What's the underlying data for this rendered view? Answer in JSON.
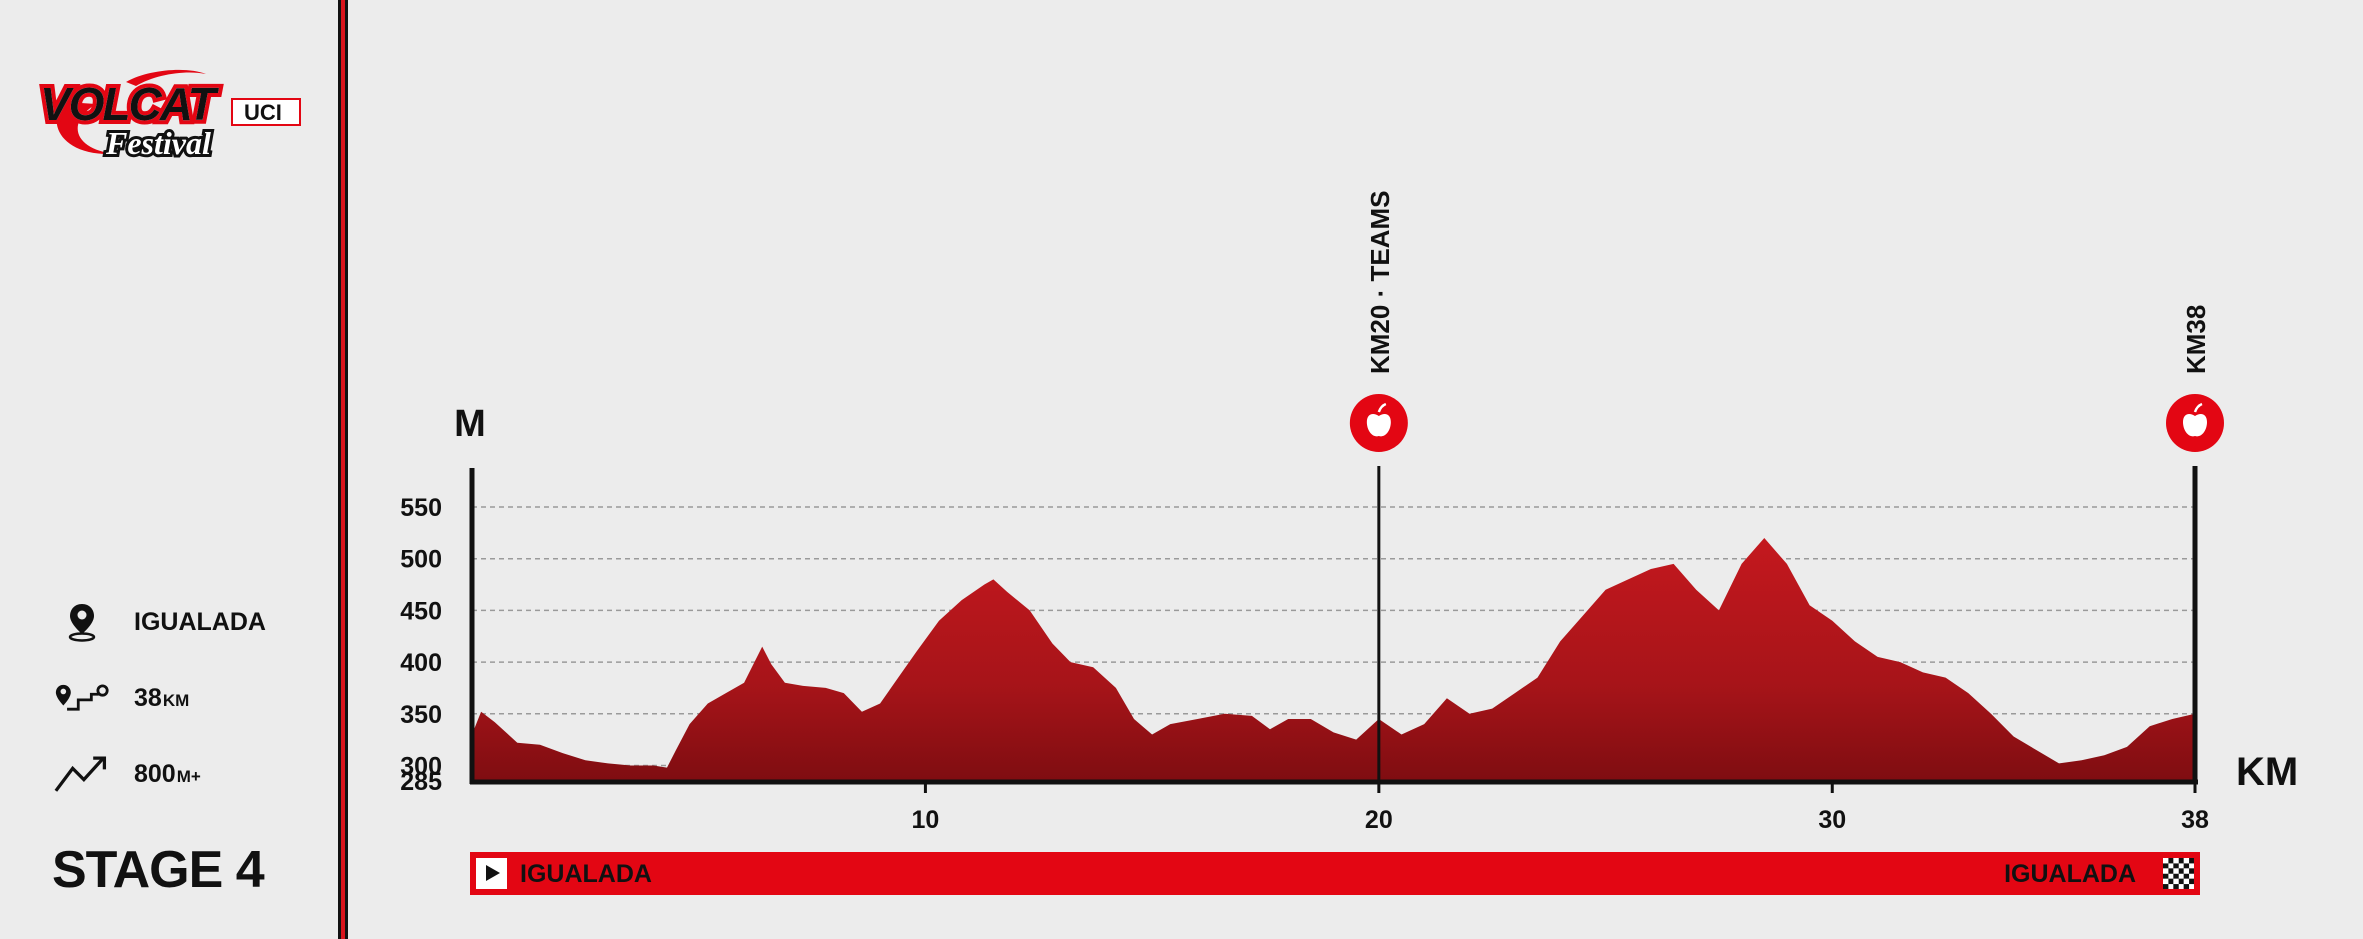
{
  "brand": {
    "logo_text": "VOLCAT",
    "logo_sub": "Festival",
    "logo_tag": "UCI",
    "primary_color": "#e30613"
  },
  "info": {
    "location": "IGUALADA",
    "distance_value": "38",
    "distance_unit": "KM",
    "elevation_value": "800",
    "elevation_unit": "M+",
    "stage": "STAGE 4"
  },
  "route": {
    "start": "IGUALADA",
    "finish": "IGUALADA"
  },
  "markers": [
    {
      "km": 20,
      "label": "KM20 · TEAMS",
      "icon": "apple-icon"
    },
    {
      "km": 38,
      "label": "KM38",
      "icon": "apple-icon"
    }
  ],
  "chart_data": {
    "type": "area",
    "title": "",
    "xlabel": "KM",
    "ylabel": "M",
    "xlim": [
      0,
      38
    ],
    "ylim": [
      285,
      580
    ],
    "x_ticks": [
      10,
      20,
      30,
      38
    ],
    "y_ticks": [
      285,
      300,
      350,
      400,
      450,
      500,
      550
    ],
    "grid": true,
    "series": [
      {
        "color": "#b5161b",
        "x": [
          0,
          0.2,
          0.5,
          1.0,
          1.5,
          2.0,
          2.5,
          3.0,
          3.5,
          4.0,
          4.3,
          4.5,
          4.8,
          5.2,
          5.6,
          6.0,
          6.4,
          6.6,
          6.9,
          7.3,
          7.8,
          8.2,
          8.6,
          9.0,
          9.4,
          9.8,
          10.3,
          10.8,
          11.3,
          11.5,
          11.8,
          12.3,
          12.8,
          13.2,
          13.7,
          14.2,
          14.6,
          15.0,
          15.4,
          16.0,
          16.6,
          17.2,
          17.6,
          18.0,
          18.5,
          19.0,
          19.5,
          20.0,
          20.5,
          21.0,
          21.5,
          22.0,
          22.5,
          23.0,
          23.5,
          24.0,
          24.5,
          25.0,
          25.5,
          26.0,
          26.5,
          27.0,
          27.5,
          28.0,
          28.5,
          29.0,
          29.5,
          30.0,
          30.5,
          31.0,
          31.5,
          32.0,
          32.5,
          33.0,
          33.5,
          34.0,
          34.5,
          35.0,
          35.5,
          36.0,
          36.5,
          37.0,
          37.5,
          38.0
        ],
        "values": [
          330,
          352,
          342,
          322,
          320,
          312,
          305,
          302,
          300,
          300,
          298,
          315,
          340,
          360,
          370,
          380,
          415,
          398,
          380,
          377,
          375,
          370,
          352,
          360,
          385,
          410,
          440,
          460,
          475,
          480,
          468,
          450,
          418,
          400,
          395,
          375,
          345,
          330,
          340,
          345,
          350,
          348,
          335,
          345,
          345,
          332,
          325,
          345,
          330,
          340,
          365,
          350,
          355,
          370,
          385,
          420,
          445,
          470,
          480,
          490,
          495,
          470,
          450,
          495,
          520,
          495,
          455,
          440,
          420,
          405,
          400,
          390,
          385,
          370,
          350,
          328,
          315,
          302,
          305,
          310,
          318,
          338,
          345,
          350
        ]
      }
    ]
  }
}
